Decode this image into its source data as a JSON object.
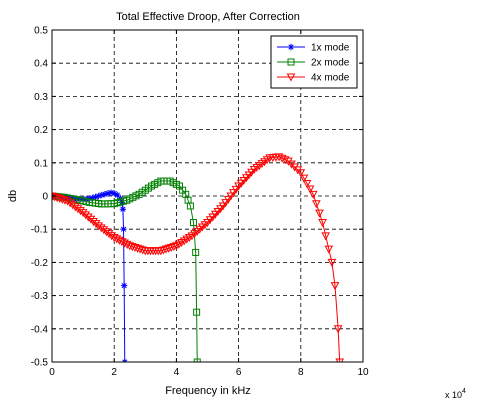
{
  "chart_data": {
    "type": "line",
    "title": "Total Effective Droop, After Correction",
    "xlabel": "Frequency in kHz",
    "ylabel": "db",
    "x_multiplier_label": "x 10",
    "x_multiplier_exponent": "4",
    "xlim": [
      0,
      10
    ],
    "ylim": [
      -0.5,
      0.5
    ],
    "x_ticks": [
      0,
      2,
      4,
      6,
      8,
      10
    ],
    "y_ticks": [
      -0.5,
      -0.4,
      -0.3,
      -0.2,
      -0.1,
      0,
      0.1,
      0.2,
      0.3,
      0.4,
      0.5
    ],
    "grid": "dashed",
    "legend_position": "top-right",
    "series": [
      {
        "name": "1x mode",
        "color": "#0000ff",
        "marker": "asterisk",
        "points": [
          [
            0,
            0
          ],
          [
            0.2,
            -0.001
          ],
          [
            0.4,
            -0.003
          ],
          [
            0.6,
            -0.006
          ],
          [
            0.8,
            -0.009
          ],
          [
            1.0,
            -0.01
          ],
          [
            1.2,
            -0.008
          ],
          [
            1.4,
            -0.003
          ],
          [
            1.6,
            0.003
          ],
          [
            1.8,
            0.008
          ],
          [
            1.9,
            0.01
          ],
          [
            2.0,
            0.008
          ],
          [
            2.1,
            0.003
          ],
          [
            2.2,
            -0.008
          ],
          [
            2.25,
            -0.02
          ],
          [
            2.28,
            -0.04
          ],
          [
            2.3,
            -0.1
          ],
          [
            2.32,
            -0.27
          ],
          [
            2.34,
            -0.5
          ]
        ]
      },
      {
        "name": "2x mode",
        "color": "#008000",
        "marker": "square",
        "points": [
          [
            0,
            0
          ],
          [
            0.4,
            -0.004
          ],
          [
            0.8,
            -0.011
          ],
          [
            1.2,
            -0.019
          ],
          [
            1.6,
            -0.024
          ],
          [
            2.0,
            -0.023
          ],
          [
            2.4,
            -0.013
          ],
          [
            2.8,
            0.005
          ],
          [
            3.2,
            0.03
          ],
          [
            3.5,
            0.045
          ],
          [
            3.8,
            0.045
          ],
          [
            4.1,
            0.03
          ],
          [
            4.3,
            0.005
          ],
          [
            4.45,
            -0.03
          ],
          [
            4.55,
            -0.08
          ],
          [
            4.62,
            -0.17
          ],
          [
            4.65,
            -0.35
          ],
          [
            4.67,
            -0.5
          ]
        ]
      },
      {
        "name": "4x mode",
        "color": "#ff0000",
        "marker": "triangle-down",
        "points": [
          [
            0,
            0
          ],
          [
            0.5,
            -0.015
          ],
          [
            1.0,
            -0.05
          ],
          [
            1.5,
            -0.09
          ],
          [
            2.0,
            -0.125
          ],
          [
            2.5,
            -0.15
          ],
          [
            3.0,
            -0.165
          ],
          [
            3.5,
            -0.165
          ],
          [
            4.0,
            -0.15
          ],
          [
            4.5,
            -0.12
          ],
          [
            5.0,
            -0.08
          ],
          [
            5.5,
            -0.03
          ],
          [
            6.0,
            0.03
          ],
          [
            6.5,
            0.08
          ],
          [
            7.0,
            0.115
          ],
          [
            7.3,
            0.118
          ],
          [
            7.6,
            0.105
          ],
          [
            8.0,
            0.07
          ],
          [
            8.4,
            0.005
          ],
          [
            8.7,
            -0.08
          ],
          [
            9.0,
            -0.2
          ],
          [
            9.1,
            -0.27
          ],
          [
            9.2,
            -0.4
          ],
          [
            9.25,
            -0.5
          ]
        ]
      }
    ]
  }
}
